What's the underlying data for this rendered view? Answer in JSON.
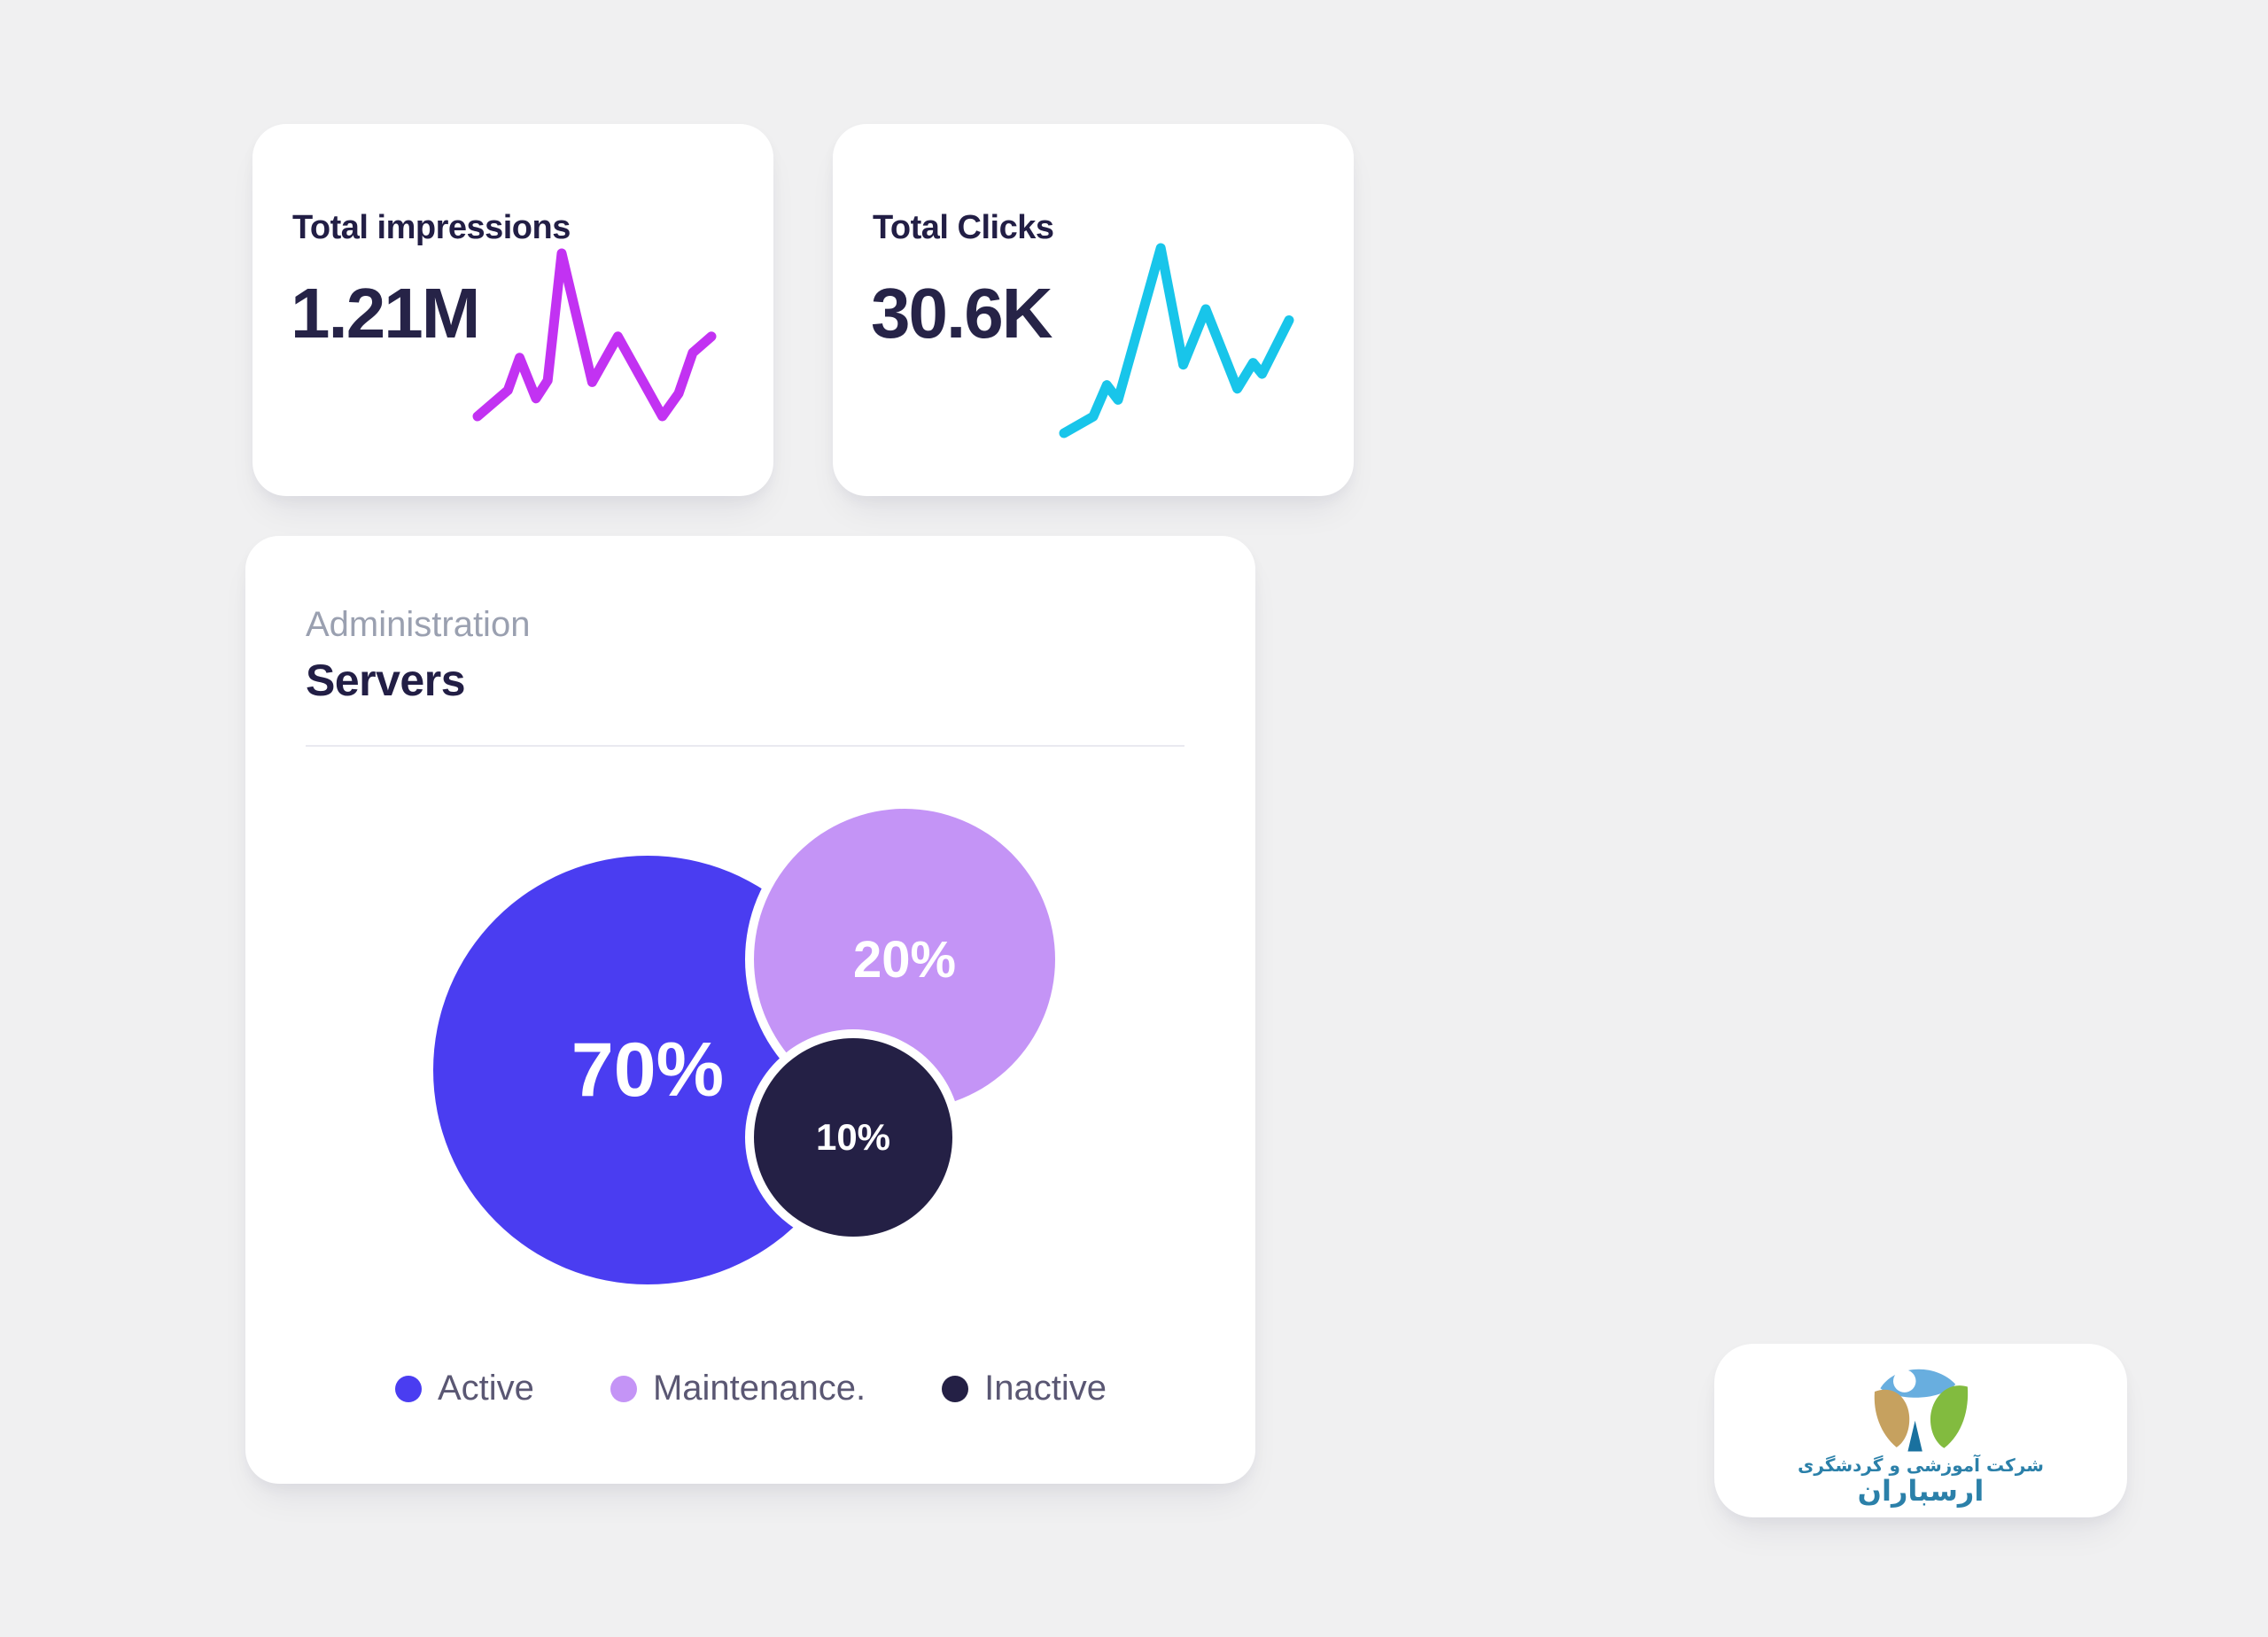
{
  "page": {
    "background_color": "#f0f0f1"
  },
  "kpi_cards": {
    "impressions": {
      "title": "Total impressions",
      "value": "1.21M",
      "spark_color": "#c232f2"
    },
    "clicks": {
      "title": "Total Clicks",
      "value": "30.6K",
      "spark_color": "#18c5ea"
    }
  },
  "servers_card": {
    "eyebrow": "Administration",
    "title": "Servers",
    "bubbles": [
      {
        "label": "Active",
        "value": "70%",
        "color": "#4a3df1"
      },
      {
        "label": "Maintenance.",
        "value": "20%",
        "color": "#c494f6"
      },
      {
        "label": "Inactive",
        "value": "10%",
        "color": "#242045"
      }
    ]
  },
  "logo_card": {
    "line1": "شرکت آموزشی و گردشگری",
    "line2": "ارسباران",
    "logo_colors": {
      "eye": "#68aedf",
      "left_leaf": "#c6a15f",
      "right_leaf": "#82bb3f",
      "body": "#19719f",
      "text": "#2b80a9"
    }
  },
  "chart_data": [
    {
      "type": "line",
      "name": "total-impressions-sparkline",
      "title": "Total impressions",
      "color": "#c232f2",
      "axes": "hidden",
      "xlim": [
        0,
        100
      ],
      "ylim": [
        0,
        100
      ],
      "series": [
        {
          "name": "impressions",
          "x": [
            0,
            13,
            18,
            25,
            30,
            36,
            49,
            60,
            79,
            86,
            92,
            100
          ],
          "y": [
            0,
            16,
            36,
            11,
            22,
            100,
            21,
            49,
            0,
            14,
            39,
            49
          ]
        }
      ]
    },
    {
      "type": "line",
      "name": "total-clicks-sparkline",
      "title": "Total Clicks",
      "color": "#18c5ea",
      "axes": "hidden",
      "xlim": [
        0,
        100
      ],
      "ylim": [
        0,
        100
      ],
      "series": [
        {
          "name": "clicks",
          "x": [
            0,
            13,
            19,
            24,
            43,
            53,
            63,
            77,
            84,
            88,
            100
          ],
          "y": [
            0,
            9,
            26,
            18,
            100,
            37,
            67,
            24,
            38,
            32,
            61
          ]
        }
      ]
    },
    {
      "type": "pie",
      "variant": "bubble",
      "name": "servers-status-bubbles",
      "title": "Servers",
      "categories": [
        "Active",
        "Maintenance.",
        "Inactive"
      ],
      "values": [
        70,
        20,
        10
      ],
      "value_labels": [
        "70%",
        "20%",
        "10%"
      ],
      "colors": [
        "#4a3df1",
        "#c494f6",
        "#242045"
      ],
      "legend_position": "bottom"
    }
  ]
}
